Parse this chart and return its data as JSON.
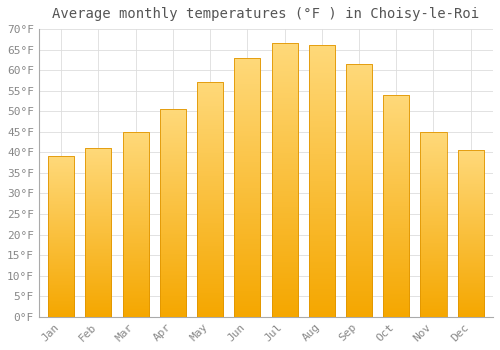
{
  "title": "Average monthly temperatures (°F ) in Choisy-le-Roi",
  "months": [
    "Jan",
    "Feb",
    "Mar",
    "Apr",
    "May",
    "Jun",
    "Jul",
    "Aug",
    "Sep",
    "Oct",
    "Nov",
    "Dec"
  ],
  "values": [
    39,
    41,
    45,
    50.5,
    57,
    63,
    66.5,
    66,
    61.5,
    54,
    45,
    40.5
  ],
  "bar_color_top": "#FFD97A",
  "bar_color_bottom": "#F5A700",
  "bar_edge_color": "#E09500",
  "background_color": "#FFFFFF",
  "grid_color": "#DDDDDD",
  "ylim": [
    0,
    70
  ],
  "title_fontsize": 10,
  "tick_fontsize": 8,
  "tick_color": "#888888",
  "title_color": "#555555"
}
